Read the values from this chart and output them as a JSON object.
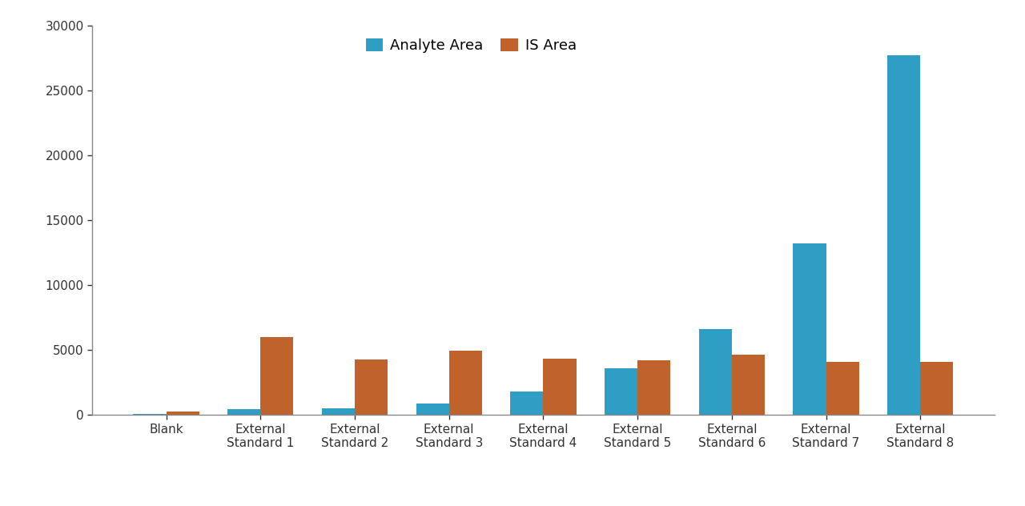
{
  "categories": [
    "Blank",
    "External\nStandard 1",
    "External\nStandard 2",
    "External\nStandard 3",
    "External\nStandard 4",
    "External\nStandard 5",
    "External\nStandard 6",
    "External\nStandard 7",
    "External\nStandard 8"
  ],
  "analyte_area": [
    100,
    450,
    530,
    900,
    1800,
    3600,
    6600,
    13200,
    27700
  ],
  "is_area": [
    250,
    6000,
    4250,
    4950,
    4350,
    4200,
    4650,
    4100,
    4100
  ],
  "analyte_color": "#2E9EC4",
  "is_color": "#C0622B",
  "ylim": [
    0,
    30000
  ],
  "yticks": [
    0,
    5000,
    10000,
    15000,
    20000,
    25000,
    30000
  ],
  "legend_labels": [
    "Analyte Area",
    "IS Area"
  ],
  "bar_width": 0.35,
  "figsize": [
    12.8,
    6.32
  ],
  "dpi": 100,
  "background_color": "#FFFFFF",
  "spine_color": "#888888",
  "tick_color": "#333333",
  "legend_fontsize": 13,
  "tick_fontsize": 11,
  "xlabel_fontsize": 11
}
